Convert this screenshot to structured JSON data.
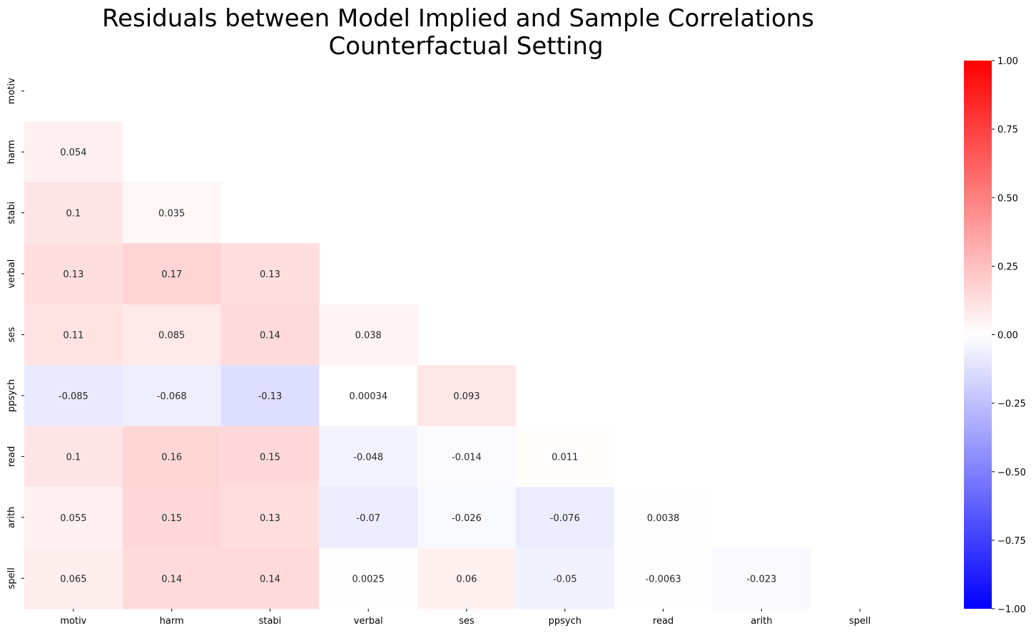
{
  "chart_data": {
    "type": "heatmap",
    "title": [
      "Residuals between Model Implied and Sample Correlations",
      "Counterfactual Setting"
    ],
    "variables": [
      "motiv",
      "harm",
      "stabi",
      "verbal",
      "ses",
      "ppsych",
      "read",
      "arith",
      "spell"
    ],
    "mask": "upper-triangle-and-diagonal",
    "cells": [
      {
        "row": "harm",
        "col": "motiv",
        "value": 0.054,
        "label": "0.054"
      },
      {
        "row": "stabi",
        "col": "motiv",
        "value": 0.1,
        "label": "0.1"
      },
      {
        "row": "stabi",
        "col": "harm",
        "value": 0.035,
        "label": "0.035"
      },
      {
        "row": "verbal",
        "col": "motiv",
        "value": 0.13,
        "label": "0.13"
      },
      {
        "row": "verbal",
        "col": "harm",
        "value": 0.17,
        "label": "0.17"
      },
      {
        "row": "verbal",
        "col": "stabi",
        "value": 0.13,
        "label": "0.13"
      },
      {
        "row": "ses",
        "col": "motiv",
        "value": 0.11,
        "label": "0.11"
      },
      {
        "row": "ses",
        "col": "harm",
        "value": 0.085,
        "label": "0.085"
      },
      {
        "row": "ses",
        "col": "stabi",
        "value": 0.14,
        "label": "0.14"
      },
      {
        "row": "ses",
        "col": "verbal",
        "value": 0.038,
        "label": "0.038"
      },
      {
        "row": "ppsych",
        "col": "motiv",
        "value": -0.085,
        "label": "-0.085"
      },
      {
        "row": "ppsych",
        "col": "harm",
        "value": -0.068,
        "label": "-0.068"
      },
      {
        "row": "ppsych",
        "col": "stabi",
        "value": -0.13,
        "label": "-0.13"
      },
      {
        "row": "ppsych",
        "col": "verbal",
        "value": 0.00034,
        "label": "0.00034"
      },
      {
        "row": "ppsych",
        "col": "ses",
        "value": 0.093,
        "label": "0.093"
      },
      {
        "row": "read",
        "col": "motiv",
        "value": 0.1,
        "label": "0.1"
      },
      {
        "row": "read",
        "col": "harm",
        "value": 0.16,
        "label": "0.16"
      },
      {
        "row": "read",
        "col": "stabi",
        "value": 0.15,
        "label": "0.15"
      },
      {
        "row": "read",
        "col": "verbal",
        "value": -0.048,
        "label": "-0.048"
      },
      {
        "row": "read",
        "col": "ses",
        "value": -0.014,
        "label": "-0.014"
      },
      {
        "row": "read",
        "col": "ppsych",
        "value": 0.011,
        "label": "0.011"
      },
      {
        "row": "arith",
        "col": "motiv",
        "value": 0.055,
        "label": "0.055"
      },
      {
        "row": "arith",
        "col": "harm",
        "value": 0.15,
        "label": "0.15"
      },
      {
        "row": "arith",
        "col": "stabi",
        "value": 0.13,
        "label": "0.13"
      },
      {
        "row": "arith",
        "col": "verbal",
        "value": -0.07,
        "label": "-0.07"
      },
      {
        "row": "arith",
        "col": "ses",
        "value": -0.026,
        "label": "-0.026"
      },
      {
        "row": "arith",
        "col": "ppsych",
        "value": -0.076,
        "label": "-0.076"
      },
      {
        "row": "arith",
        "col": "read",
        "value": 0.0038,
        "label": "0.0038"
      },
      {
        "row": "spell",
        "col": "motiv",
        "value": 0.065,
        "label": "0.065"
      },
      {
        "row": "spell",
        "col": "harm",
        "value": 0.14,
        "label": "0.14"
      },
      {
        "row": "spell",
        "col": "stabi",
        "value": 0.14,
        "label": "0.14"
      },
      {
        "row": "spell",
        "col": "verbal",
        "value": 0.0025,
        "label": "0.0025"
      },
      {
        "row": "spell",
        "col": "ses",
        "value": 0.06,
        "label": "0.06"
      },
      {
        "row": "spell",
        "col": "ppsych",
        "value": -0.05,
        "label": "-0.05"
      },
      {
        "row": "spell",
        "col": "read",
        "value": -0.0063,
        "label": "-0.0063"
      },
      {
        "row": "spell",
        "col": "arith",
        "value": -0.023,
        "label": "-0.023"
      }
    ],
    "colorbar": {
      "min": -1.0,
      "max": 1.0,
      "colors": [
        "#0000ff",
        "#ffffff",
        "#ff0000"
      ],
      "ticks": [
        1.0,
        0.75,
        0.5,
        0.25,
        0.0,
        -0.25,
        -0.5,
        -0.75,
        -1.0
      ],
      "tick_labels": [
        "1.00",
        "0.75",
        "0.50",
        "0.25",
        "0.00",
        "−0.25",
        "−0.50",
        "−0.75",
        "−1.00"
      ]
    },
    "grid": false,
    "legend": "colorbar-right"
  }
}
